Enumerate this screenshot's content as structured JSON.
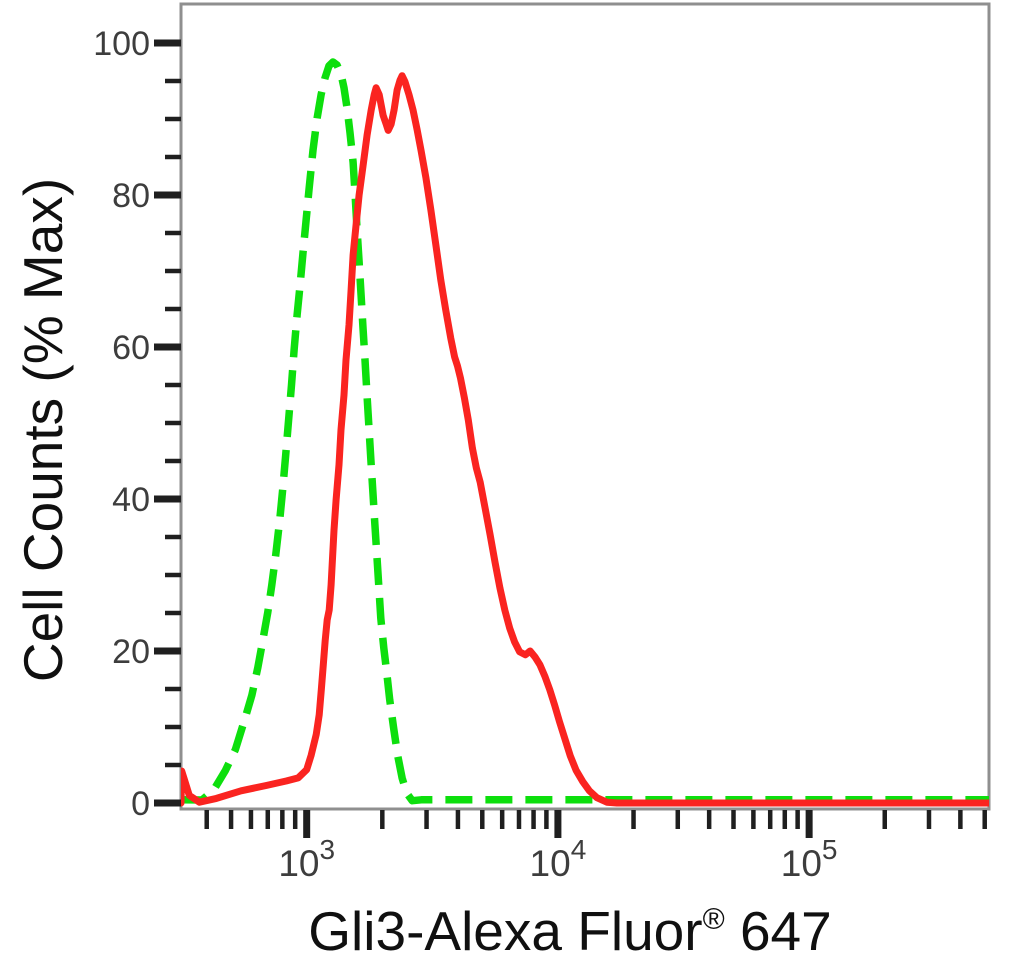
{
  "chart_data": {
    "type": "line",
    "title": "",
    "xlabel": "Gli3-Alexa Fluor® 647",
    "xlabel_parts": {
      "main": "Gli3-Alexa Fluor",
      "registered": "®",
      "suffix": " 647"
    },
    "ylabel": "Cell Counts (% Max)",
    "xscale": "log",
    "xlim": [
      316,
      520000
    ],
    "ylim": [
      0,
      100
    ],
    "grid": false,
    "legend": "none",
    "colors": {
      "red_solid": "#fa2420",
      "green_dashed": "#0ddf0d",
      "frame": "#8f8f8f",
      "tick": "#1f1f1f",
      "tick_label": "#3d3d3d",
      "axis_title": "#101010"
    },
    "x_axis": {
      "major_ticks": [
        {
          "value": 1000,
          "base": "10",
          "exponent": "3"
        },
        {
          "value": 10000,
          "base": "10",
          "exponent": "4"
        },
        {
          "value": 100000,
          "base": "10",
          "exponent": "5"
        }
      ],
      "minor_ticks": [
        400,
        500,
        600,
        700,
        800,
        900,
        2000,
        3000,
        4000,
        5000,
        6000,
        7000,
        8000,
        9000,
        20000,
        30000,
        40000,
        50000,
        60000,
        70000,
        80000,
        90000,
        200000,
        300000,
        400000,
        500000
      ]
    },
    "y_axis": {
      "major_ticks": [
        0,
        20,
        40,
        60,
        80,
        100
      ],
      "minor_ticks": [
        5,
        10,
        15,
        25,
        30,
        35,
        45,
        50,
        55,
        65,
        70,
        75,
        85,
        90,
        95
      ]
    },
    "series": [
      {
        "name": "green-dashed-control",
        "style": "dashed",
        "color_key": "green_dashed",
        "peak": {
          "x": 1270,
          "y_percent": 97.5
        },
        "points": [
          [
            316,
            0
          ],
          [
            383,
            0.4
          ],
          [
            426,
            1.7
          ],
          [
            475,
            4.3
          ],
          [
            520,
            7.0
          ],
          [
            569,
            11.2
          ],
          [
            605,
            14.2
          ],
          [
            639,
            17.8
          ],
          [
            669,
            21.4
          ],
          [
            700,
            25.1
          ],
          [
            726,
            28.7
          ],
          [
            753,
            32.6
          ],
          [
            781,
            37.2
          ],
          [
            803,
            41.4
          ],
          [
            825,
            45.8
          ],
          [
            847,
            50.4
          ],
          [
            870,
            55.0
          ],
          [
            891,
            59.6
          ],
          [
            916,
            64.2
          ],
          [
            941,
            68.2
          ],
          [
            967,
            72.4
          ],
          [
            993,
            76.4
          ],
          [
            1021,
            80.7
          ],
          [
            1060,
            85.9
          ],
          [
            1100,
            90.1
          ],
          [
            1141,
            93.2
          ],
          [
            1183,
            95.4
          ],
          [
            1227,
            97.0
          ],
          [
            1273,
            97.5
          ],
          [
            1320,
            97.1
          ],
          [
            1369,
            95.9
          ],
          [
            1408,
            94.1
          ],
          [
            1448,
            91.4
          ],
          [
            1488,
            88.2
          ],
          [
            1530,
            84.3
          ],
          [
            1558,
            80.0
          ],
          [
            1587,
            75.4
          ],
          [
            1616,
            71.2
          ],
          [
            1646,
            66.8
          ],
          [
            1676,
            62.5
          ],
          [
            1707,
            58.3
          ],
          [
            1738,
            53.7
          ],
          [
            1770,
            49.3
          ],
          [
            1802,
            45.1
          ],
          [
            1835,
            40.9
          ],
          [
            1869,
            36.6
          ],
          [
            1903,
            32.5
          ],
          [
            1938,
            28.3
          ],
          [
            1973,
            24.3
          ],
          [
            2027,
            20.4
          ],
          [
            2083,
            17.2
          ],
          [
            2140,
            13.6
          ],
          [
            2219,
            9.9
          ],
          [
            2300,
            6.3
          ],
          [
            2398,
            3.3
          ],
          [
            2500,
            1.3
          ],
          [
            2630,
            0.3
          ],
          [
            2860,
            0
          ],
          [
            5000,
            0
          ],
          [
            10000,
            0
          ],
          [
            30000,
            0
          ],
          [
            100000,
            0
          ],
          [
            300000,
            0
          ],
          [
            520000,
            0
          ]
        ]
      },
      {
        "name": "red-solid-sample",
        "style": "solid",
        "color_key": "red_solid",
        "peak": {
          "x": 2400,
          "y_percent": 95.7
        },
        "points": [
          [
            316,
            0
          ],
          [
            318,
            4.2
          ],
          [
            325,
            3.2
          ],
          [
            341,
            1.0
          ],
          [
            374,
            0.1
          ],
          [
            437,
            0.6
          ],
          [
            548,
            1.6
          ],
          [
            690,
            2.3
          ],
          [
            829,
            2.9
          ],
          [
            925,
            3.3
          ],
          [
            1000,
            4.4
          ],
          [
            1042,
            6.3
          ],
          [
            1091,
            9.0
          ],
          [
            1122,
            11.6
          ],
          [
            1143,
            14.9
          ],
          [
            1164,
            18.2
          ],
          [
            1185,
            21.4
          ],
          [
            1207,
            24.1
          ],
          [
            1229,
            25.4
          ],
          [
            1251,
            28.7
          ],
          [
            1285,
            35.9
          ],
          [
            1309,
            39.9
          ],
          [
            1345,
            44.5
          ],
          [
            1370,
            49.1
          ],
          [
            1408,
            53.7
          ],
          [
            1434,
            58.3
          ],
          [
            1474,
            62.9
          ],
          [
            1502,
            67.5
          ],
          [
            1530,
            72.1
          ],
          [
            1573,
            76.1
          ],
          [
            1617,
            80.0
          ],
          [
            1677,
            83.9
          ],
          [
            1740,
            87.9
          ],
          [
            1806,
            91.2
          ],
          [
            1856,
            93.2
          ],
          [
            1890,
            94.1
          ],
          [
            1943,
            93.2
          ],
          [
            2015,
            90.5
          ],
          [
            2072,
            89.3
          ],
          [
            2110,
            88.5
          ],
          [
            2168,
            89.3
          ],
          [
            2228,
            91.2
          ],
          [
            2290,
            93.8
          ],
          [
            2353,
            95.1
          ],
          [
            2397,
            95.7
          ],
          [
            2463,
            94.9
          ],
          [
            2555,
            93.2
          ],
          [
            2650,
            91.2
          ],
          [
            2750,
            88.6
          ],
          [
            2852,
            85.9
          ],
          [
            2984,
            82.2
          ],
          [
            3122,
            78.0
          ],
          [
            3267,
            73.4
          ],
          [
            3418,
            68.8
          ],
          [
            3576,
            64.9
          ],
          [
            3742,
            61.2
          ],
          [
            3879,
            58.7
          ],
          [
            3985,
            57.5
          ],
          [
            4095,
            55.9
          ],
          [
            4245,
            53.3
          ],
          [
            4400,
            50.4
          ],
          [
            4565,
            46.7
          ],
          [
            4733,
            44.1
          ],
          [
            4907,
            42.2
          ],
          [
            5133,
            38.8
          ],
          [
            5370,
            35.3
          ],
          [
            5617,
            31.7
          ],
          [
            5876,
            28.3
          ],
          [
            6147,
            25.4
          ],
          [
            6430,
            23.0
          ],
          [
            6726,
            21.2
          ],
          [
            7036,
            19.9
          ],
          [
            7420,
            19.5
          ],
          [
            7750,
            20.0
          ],
          [
            8110,
            19.2
          ],
          [
            8480,
            18.2
          ],
          [
            8870,
            16.7
          ],
          [
            9280,
            14.9
          ],
          [
            9700,
            12.9
          ],
          [
            10150,
            10.7
          ],
          [
            10620,
            8.6
          ],
          [
            11200,
            6.2
          ],
          [
            11810,
            4.3
          ],
          [
            12560,
            2.8
          ],
          [
            13350,
            1.6
          ],
          [
            14300,
            0.7
          ],
          [
            15670,
            0.1
          ],
          [
            17170,
            0
          ],
          [
            25000,
            0
          ],
          [
            60000,
            0
          ],
          [
            150000,
            0
          ],
          [
            350000,
            0
          ],
          [
            520000,
            0
          ]
        ]
      }
    ]
  }
}
